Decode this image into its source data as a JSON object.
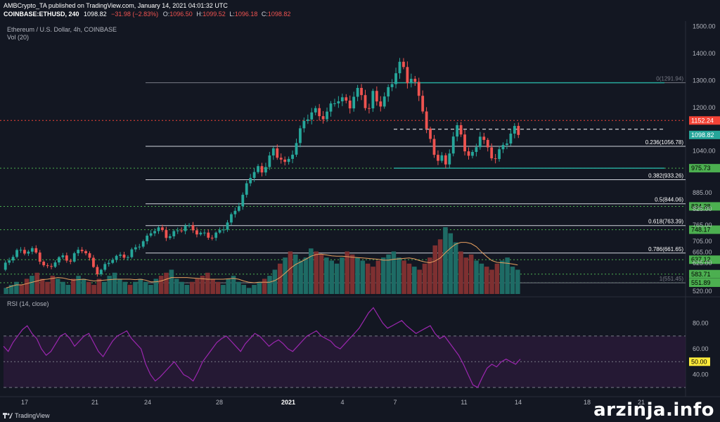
{
  "header": {
    "line1": "AMBCrypto_TA published on TradingView.com, January 14, 2021 04:01:32 UTC",
    "symbol": "COINBASE:ETHUSD, 240",
    "last": "1098.82",
    "change": "−31.98 (−2.83%)",
    "o_label": "O:",
    "o": "1096.50",
    "h_label": "H:",
    "h": "1099.52",
    "l_label": "L:",
    "l": "1096.18",
    "c_label": "C:",
    "c": "1098.82"
  },
  "price_pane": {
    "title": "Ethereum / U.S. Dollar, 4h, COINBASE",
    "vol": "Vol (20)"
  },
  "rsi_pane": {
    "title": "RSI (14, close)"
  },
  "colors": {
    "bg": "#131722",
    "up": "#26a69a",
    "down": "#ef5350",
    "rsi": "#9c27b0",
    "support": "#4caf50",
    "resistance": "#f44336",
    "fib": "#d1d4dc"
  },
  "footer": {
    "brand": "TradingView",
    "watermark": "arzinja.info"
  },
  "chart_data": [
    {
      "type": "candlestick",
      "pair": "ETHUSD",
      "timeframe": "4h",
      "ylim": [
        505,
        1520
      ],
      "x_ticks": [
        "17",
        "21",
        "24",
        "28",
        "2021",
        "4",
        "7",
        "11",
        "14",
        "18",
        "21"
      ],
      "y_ticks": [
        "1500.00",
        "1400.00",
        "1300.00",
        "1200.00",
        "1040.00",
        "885.00",
        "825.00",
        "765.00",
        "705.00",
        "665.00",
        "625.00",
        "520.00"
      ],
      "current_price_label": "1098.82",
      "horizontal_levels": [
        {
          "value": 1152.24,
          "label": "1152.24",
          "kind": "resistance"
        },
        {
          "value": 975.73,
          "label": "975.73",
          "kind": "support"
        },
        {
          "value": 834.38,
          "label": "834.38",
          "kind": "support"
        },
        {
          "value": 748.17,
          "label": "748.17",
          "kind": "support"
        },
        {
          "value": 637.12,
          "label": "637.12",
          "kind": "support"
        },
        {
          "value": 583.71,
          "label": "583.71",
          "kind": "support"
        },
        {
          "value": 551.89,
          "label": "551.89",
          "kind": "support"
        }
      ],
      "fibonacci": [
        {
          "label": "0(1291.94)",
          "value": 1291.94
        },
        {
          "label": "0.236(1056.78)",
          "value": 1056.78
        },
        {
          "label": "0.382(933.26)",
          "value": 933.26
        },
        {
          "label": "0.5(844.06)",
          "value": 844.06
        },
        {
          "label": "0.618(763.39)",
          "value": 763.39
        },
        {
          "label": "0.786(661.65)",
          "value": 661.65
        },
        {
          "label": "1(551.45)",
          "value": 551.45
        }
      ],
      "close_path": [
        [
          0,
          600
        ],
        [
          5,
          620
        ],
        [
          10,
          650
        ],
        [
          15,
          675
        ],
        [
          20,
          668
        ],
        [
          25,
          660
        ],
        [
          30,
          672
        ],
        [
          35,
          665
        ],
        [
          40,
          640
        ],
        [
          45,
          615
        ],
        [
          50,
          600
        ],
        [
          55,
          628
        ],
        [
          60,
          642
        ],
        [
          65,
          650
        ],
        [
          70,
          635
        ],
        [
          75,
          655
        ],
        [
          80,
          668
        ],
        [
          85,
          672
        ],
        [
          90,
          645
        ],
        [
          95,
          615
        ],
        [
          100,
          590
        ],
        [
          105,
          605
        ],
        [
          110,
          620
        ],
        [
          115,
          640
        ],
        [
          120,
          650
        ],
        [
          125,
          660
        ],
        [
          130,
          648
        ],
        [
          135,
          665
        ],
        [
          140,
          680
        ],
        [
          145,
          700
        ],
        [
          150,
          720
        ],
        [
          155,
          745
        ],
        [
          160,
          755
        ],
        [
          165,
          740
        ],
        [
          170,
          720
        ],
        [
          175,
          732
        ],
        [
          180,
          745
        ],
        [
          185,
          750
        ],
        [
          190,
          760
        ],
        [
          195,
          748
        ],
        [
          200,
          742
        ],
        [
          205,
          740
        ],
        [
          210,
          735
        ],
        [
          215,
          722
        ],
        [
          220,
          718
        ],
        [
          225,
          735
        ],
        [
          230,
          760
        ],
        [
          235,
          790
        ],
        [
          240,
          810
        ],
        [
          245,
          835
        ],
        [
          250,
          870
        ],
        [
          255,
          920
        ],
        [
          260,
          975
        ],
        [
          265,
          985
        ],
        [
          270,
          950
        ],
        [
          275,
          1000
        ],
        [
          280,
          1040
        ],
        [
          285,
          1015
        ],
        [
          290,
          1030
        ],
        [
          295,
          990
        ],
        [
          300,
          1010
        ],
        [
          305,
          1070
        ],
        [
          310,
          1120
        ],
        [
          315,
          1160
        ],
        [
          320,
          1200
        ],
        [
          325,
          1185
        ],
        [
          330,
          1150
        ],
        [
          335,
          1170
        ],
        [
          340,
          1200
        ],
        [
          345,
          1230
        ],
        [
          350,
          1250
        ],
        [
          355,
          1215
        ],
        [
          360,
          1190
        ],
        [
          365,
          1250
        ],
        [
          370,
          1270
        ],
        [
          375,
          1230
        ],
        [
          380,
          1195
        ],
        [
          385,
          1245
        ],
        [
          390,
          1200
        ],
        [
          395,
          1230
        ],
        [
          400,
          1270
        ],
        [
          405,
          1310
        ],
        [
          410,
          1355
        ],
        [
          415,
          1340
        ],
        [
          420,
          1300
        ],
        [
          425,
          1320
        ],
        [
          430,
          1270
        ],
        [
          435,
          1220
        ],
        [
          440,
          1110
        ],
        [
          445,
          1050
        ],
        [
          450,
          1010
        ],
        [
          455,
          1030
        ],
        [
          460,
          985
        ],
        [
          465,
          1060
        ],
        [
          470,
          1120
        ],
        [
          475,
          1100
        ],
        [
          480,
          1050
        ],
        [
          485,
          1020
        ],
        [
          490,
          1040
        ],
        [
          495,
          1100
        ],
        [
          500,
          1060
        ],
        [
          505,
          1030
        ],
        [
          510,
          1020
        ],
        [
          515,
          1040
        ],
        [
          520,
          1060
        ],
        [
          525,
          1080
        ],
        [
          530,
          1120
        ],
        [
          535,
          1098.82
        ]
      ]
    },
    {
      "type": "bar",
      "name": "Vol (20)",
      "values": [
        2,
        3,
        4,
        3,
        5,
        6,
        7,
        5,
        4,
        6,
        5,
        4,
        3,
        5,
        6,
        5,
        4,
        3,
        5,
        4,
        6,
        7,
        5,
        4,
        3,
        4,
        5,
        4,
        3,
        5,
        6,
        7,
        8,
        5,
        4,
        3,
        4,
        5,
        6,
        7,
        5,
        4,
        3,
        5,
        6,
        4,
        3,
        2,
        3,
        4,
        5,
        6,
        8,
        10,
        12,
        14,
        13,
        11,
        12,
        15,
        14,
        13,
        12,
        11,
        10,
        12,
        14,
        13,
        12,
        11,
        10,
        9,
        11,
        12,
        13,
        14,
        12,
        11,
        10,
        9,
        8,
        10,
        12,
        16,
        18,
        22,
        20,
        17,
        14,
        12,
        13,
        11,
        10,
        9,
        8,
        10,
        11,
        12,
        9,
        8
      ]
    },
    {
      "type": "line",
      "name": "RSI (14, close)",
      "ylim": [
        25,
        95
      ],
      "y_ticks": [
        "80.00",
        "60.00",
        "40.00"
      ],
      "bands": [
        70,
        30
      ],
      "midline_label": "50.00",
      "values": [
        62,
        58,
        65,
        70,
        75,
        78,
        72,
        68,
        60,
        55,
        58,
        64,
        70,
        72,
        68,
        62,
        66,
        70,
        72,
        65,
        58,
        54,
        60,
        66,
        70,
        72,
        74,
        68,
        64,
        60,
        48,
        40,
        35,
        38,
        42,
        46,
        50,
        45,
        40,
        38,
        35,
        42,
        50,
        55,
        60,
        65,
        68,
        70,
        66,
        62,
        58,
        64,
        68,
        72,
        70,
        66,
        62,
        65,
        67,
        64,
        60,
        58,
        62,
        66,
        70,
        72,
        74,
        70,
        68,
        66,
        62,
        60,
        64,
        68,
        72,
        76,
        82,
        88,
        92,
        86,
        80,
        76,
        78,
        80,
        82,
        78,
        75,
        72,
        74,
        76,
        78,
        72,
        68,
        70,
        65,
        60,
        55,
        48,
        40,
        32,
        30,
        38,
        45,
        48,
        46,
        50,
        52,
        50,
        48,
        52
      ]
    }
  ]
}
